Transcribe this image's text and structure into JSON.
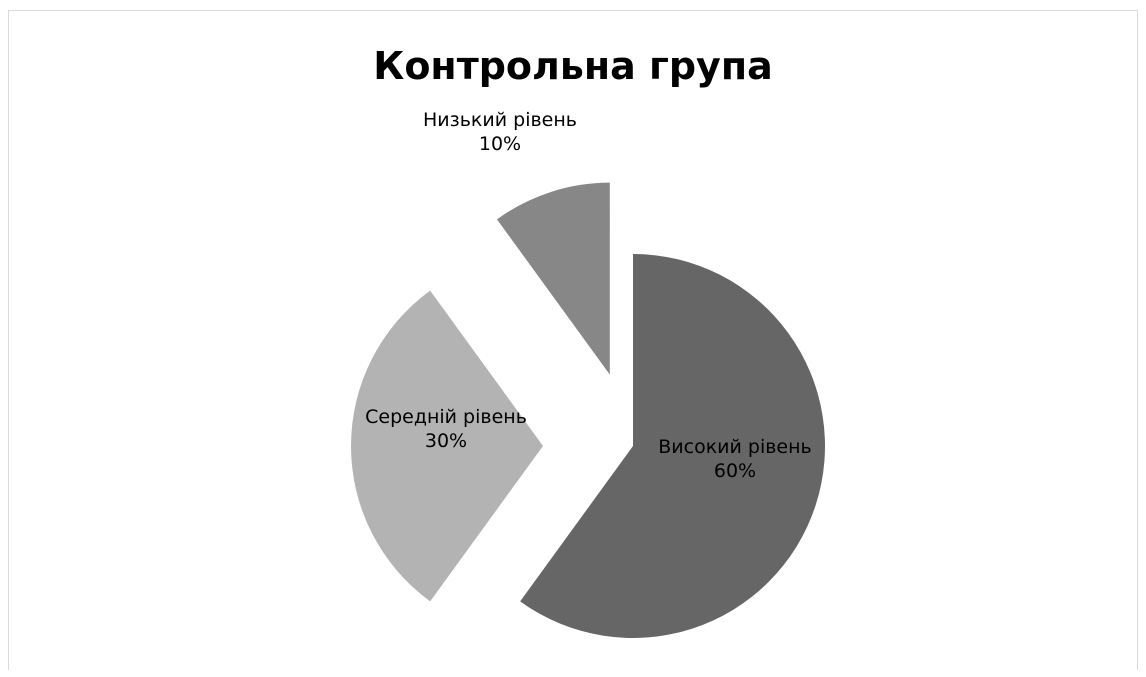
{
  "chart_data": {
    "type": "pie",
    "title": "Контрольна група",
    "exploded": true,
    "slices": [
      {
        "name": "Високий рівень",
        "value": 60,
        "label": "60%",
        "color": "#666666"
      },
      {
        "name": "Середній рівень",
        "value": 30,
        "label": "30%",
        "color": "#b3b3b3"
      },
      {
        "name": "Низький рівень",
        "value": 10,
        "label": "10%",
        "color": "#878787"
      }
    ]
  }
}
